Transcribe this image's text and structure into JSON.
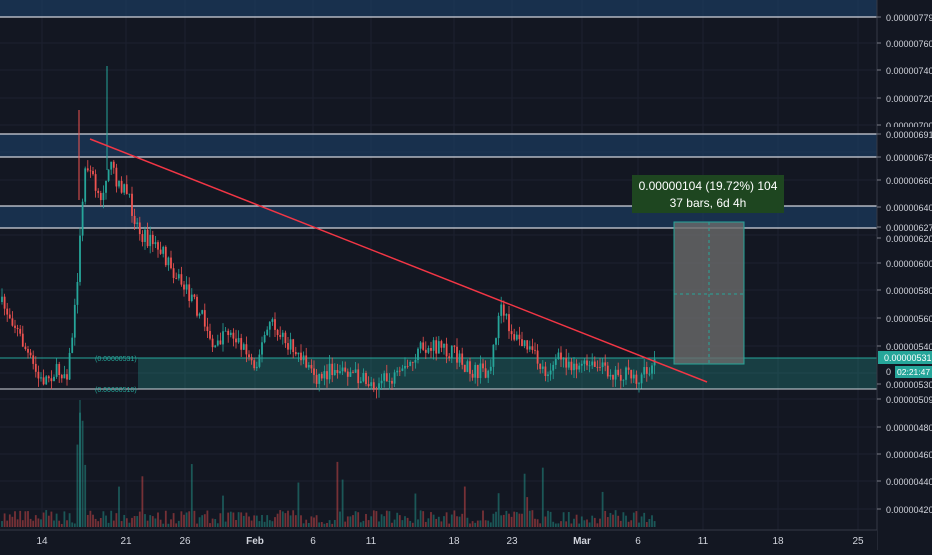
{
  "chart_data": {
    "type": "candlestick",
    "title": "",
    "xlabel": "",
    "ylabel": "",
    "x_ticks": [
      "14",
      "21",
      "26",
      "Feb",
      "6",
      "11",
      "18",
      "23",
      "Mar",
      "6",
      "11",
      "18",
      "25"
    ],
    "x_ticks_bold": [
      "Feb",
      "Mar"
    ],
    "y_ticks": [
      "0.00000779",
      "0.00000760",
      "0.00000740",
      "0.00000720",
      "0.00000700",
      "0.00000691",
      "0.00000678",
      "0.00000660",
      "0.00000640",
      "0.00000627",
      "0.00000620",
      "0.00000600",
      "0.00000580",
      "0.00000560",
      "0.00000540",
      "0.00000530",
      "0.00000509",
      "0.00000480",
      "0.00000460",
      "0.00000440",
      "0.00000420"
    ],
    "ylim": [
      4.08e-06,
      7.9e-06
    ],
    "grid": true,
    "price_label": "0.00000531",
    "price_label_2": "0",
    "countdown": "02:21:47",
    "levels": [
      "0.00000779",
      "0.00000691",
      "0.00000678",
      "0.00000640",
      "0.00000627",
      "0.00000530"
    ],
    "zone_labels": [
      "(0.00000531)",
      "(0.00000510)"
    ],
    "measure_line1": "0.00000104 (19.72%) 104",
    "measure_line2": "37 bars, 6d 4h",
    "up_color": "#26a69a",
    "down_color": "#ef5350",
    "trendline_color": "#f23645",
    "zone_blue": "#1b3a5c",
    "zone_green": "#26a69a"
  }
}
